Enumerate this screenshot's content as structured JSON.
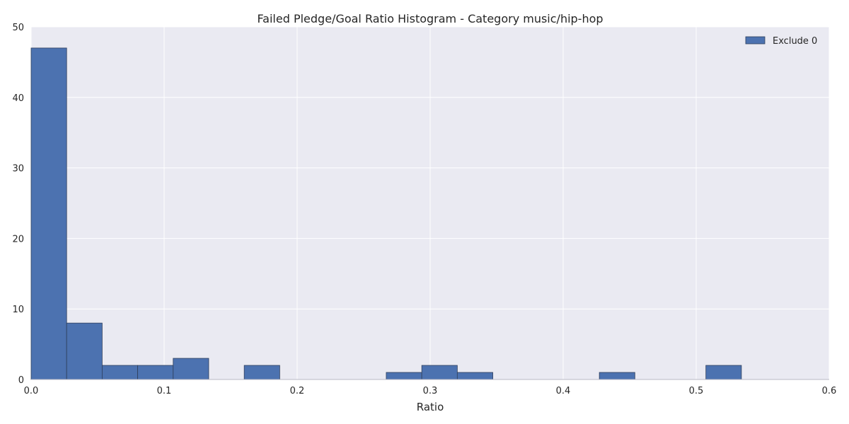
{
  "chart_data": {
    "type": "bar",
    "title": "Failed Pledge/Goal Ratio Histogram - Category music/hip-hop",
    "xlabel": "Ratio",
    "ylabel": "",
    "xlim": [
      0.0,
      0.6
    ],
    "ylim": [
      0,
      50
    ],
    "x_ticks": [
      "0.0",
      "0.1",
      "0.2",
      "0.3",
      "0.4",
      "0.5",
      "0.6"
    ],
    "y_ticks": [
      "0",
      "10",
      "20",
      "30",
      "40",
      "50"
    ],
    "grid": true,
    "legend_position": "top-right",
    "bar_color": "#4c72b0",
    "background_color": "#eaeaf2",
    "series": [
      {
        "name": "Exclude 0",
        "bins": [
          {
            "start": 0.0,
            "end": 0.0267,
            "count": 47
          },
          {
            "start": 0.0267,
            "end": 0.0534,
            "count": 8
          },
          {
            "start": 0.0534,
            "end": 0.0801,
            "count": 2
          },
          {
            "start": 0.0801,
            "end": 0.1068,
            "count": 2
          },
          {
            "start": 0.1068,
            "end": 0.1335,
            "count": 3
          },
          {
            "start": 0.1335,
            "end": 0.1602,
            "count": 0
          },
          {
            "start": 0.1602,
            "end": 0.1869,
            "count": 2
          },
          {
            "start": 0.1869,
            "end": 0.2136,
            "count": 0
          },
          {
            "start": 0.2136,
            "end": 0.2403,
            "count": 0
          },
          {
            "start": 0.2403,
            "end": 0.267,
            "count": 0
          },
          {
            "start": 0.267,
            "end": 0.2937,
            "count": 1
          },
          {
            "start": 0.2937,
            "end": 0.3204,
            "count": 2
          },
          {
            "start": 0.3204,
            "end": 0.3471,
            "count": 1
          },
          {
            "start": 0.3471,
            "end": 0.3738,
            "count": 0
          },
          {
            "start": 0.3738,
            "end": 0.4005,
            "count": 0
          },
          {
            "start": 0.4005,
            "end": 0.4272,
            "count": 0
          },
          {
            "start": 0.4272,
            "end": 0.4539,
            "count": 1
          },
          {
            "start": 0.4539,
            "end": 0.4806,
            "count": 0
          },
          {
            "start": 0.4806,
            "end": 0.5073,
            "count": 0
          },
          {
            "start": 0.5073,
            "end": 0.534,
            "count": 2
          }
        ]
      }
    ]
  }
}
